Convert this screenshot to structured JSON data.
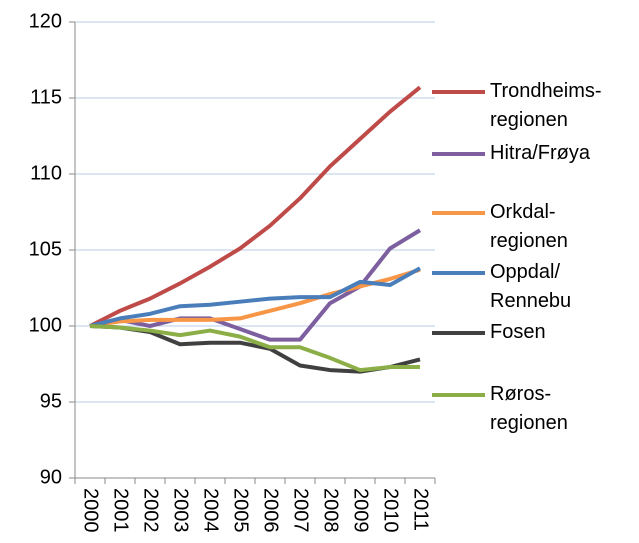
{
  "chart_data": {
    "type": "line",
    "categories": [
      "2000",
      "2001",
      "2002",
      "2003",
      "2004",
      "2005",
      "2006",
      "2007",
      "2008",
      "2009",
      "2010",
      "2011"
    ],
    "series": [
      {
        "name": "Trondheims-\nregionen",
        "color": "#be4b48",
        "values": [
          100,
          101,
          101.8,
          102.8,
          103.9,
          105.1,
          106.6,
          108.4,
          110.5,
          112.3,
          114.1,
          115.7
        ]
      },
      {
        "name": "Hitra/Frøya",
        "color": "#7d5fa0",
        "values": [
          100,
          100.4,
          100,
          100.5,
          100.5,
          99.8,
          99.1,
          99.1,
          101.5,
          102.6,
          105.1,
          106.3
        ]
      },
      {
        "name": "Orkdal-\nregionen",
        "color": "#f79646",
        "values": [
          100,
          100.3,
          100.4,
          100.4,
          100.4,
          100.5,
          101,
          101.5,
          102.1,
          102.6,
          103.1,
          103.7
        ]
      },
      {
        "name": "Oppdal/\nRennebu",
        "color": "#4a7ebb",
        "values": [
          100,
          100.5,
          100.8,
          101.3,
          101.4,
          101.6,
          101.8,
          101.9,
          101.9,
          102.9,
          102.7,
          103.8
        ]
      },
      {
        "name": "Fosen",
        "color": "#404040",
        "values": [
          100,
          99.9,
          99.6,
          98.8,
          98.9,
          98.9,
          98.5,
          97.4,
          97.1,
          97,
          97.3,
          97.8
        ]
      },
      {
        "name": "Røros-\nregionen",
        "color": "#8bae46",
        "values": [
          100,
          99.9,
          99.7,
          99.4,
          99.7,
          99.3,
          98.6,
          98.6,
          97.9,
          97.1,
          97.3,
          97.3
        ]
      }
    ],
    "ylim": [
      90,
      120
    ],
    "yticks": [
      90,
      95,
      100,
      105,
      110,
      115,
      120
    ],
    "grid": true,
    "legend": "right"
  }
}
